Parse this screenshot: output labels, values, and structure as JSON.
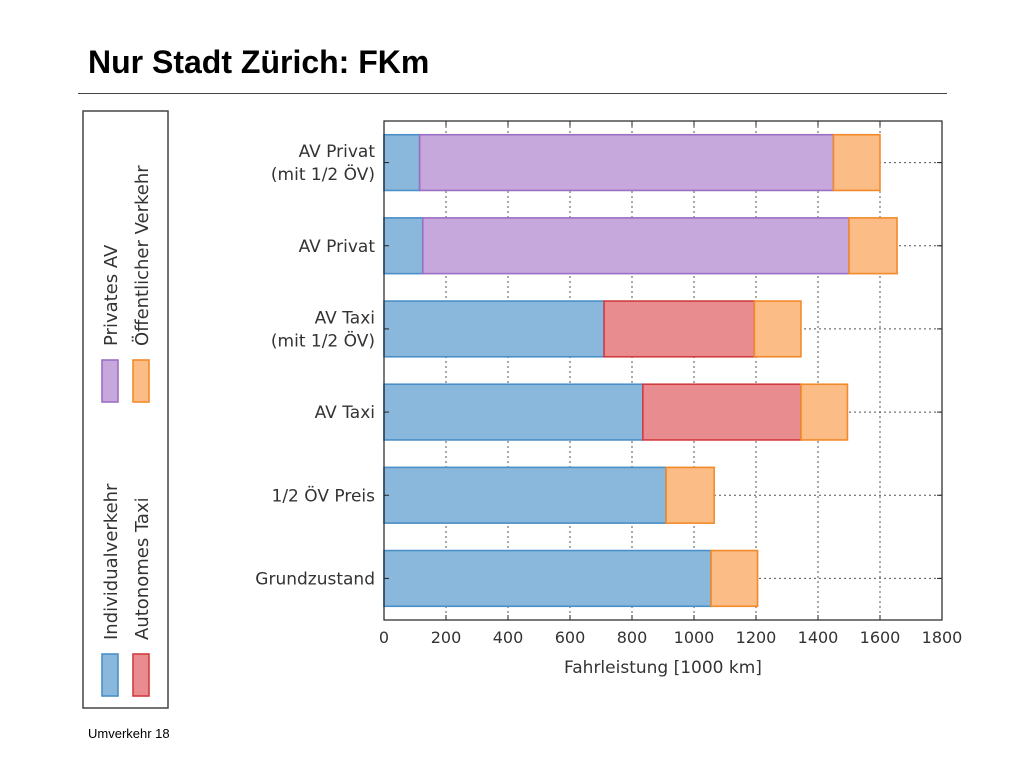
{
  "slide": {
    "title": "Nur Stadt Zürich: FKm",
    "footer": "Umverkehr 18"
  },
  "colors": {
    "individualverkehr": "#8ab8dc",
    "individualverkehr_edge": "#4a8fc7",
    "autonomes_taxi": "#e88c8f",
    "autonomes_taxi_edge": "#d23c40",
    "privates_av": "#c6a8dc",
    "privates_av_edge": "#9b6fc4",
    "oeffentlicher_verkehr": "#fcbc85",
    "oeffentlicher_verkehr_edge": "#f28a2a"
  },
  "chart_data": {
    "type": "bar",
    "orientation": "horizontal",
    "stacked": true,
    "title": "",
    "xlabel": "Fahrleistung [1000 km]",
    "ylabel": "",
    "xlim": [
      0,
      1800
    ],
    "xticks": [
      0,
      200,
      400,
      600,
      800,
      1000,
      1200,
      1400,
      1600,
      1800
    ],
    "grid": true,
    "legend_position": "left",
    "categories": [
      [
        "AV Privat",
        "(mit 1/2 ÖV)"
      ],
      [
        "AV Privat"
      ],
      [
        "AV Taxi",
        "(mit 1/2 ÖV)"
      ],
      [
        "AV Taxi"
      ],
      [
        "1/2 ÖV Preis"
      ],
      [
        "Grundzustand"
      ]
    ],
    "series": [
      {
        "name": "Individualverkehr",
        "color_key": "individualverkehr",
        "values": [
          115,
          125,
          710,
          835,
          910,
          1055
        ]
      },
      {
        "name": "Autonomes Taxi",
        "color_key": "autonomes_taxi",
        "values": [
          0,
          0,
          485,
          510,
          0,
          0
        ]
      },
      {
        "name": "Privates AV",
        "color_key": "privates_av",
        "values": [
          1335,
          1375,
          0,
          0,
          0,
          0
        ]
      },
      {
        "name": "Öffentlicher Verkehr",
        "color_key": "oeffentlicher_verkehr",
        "values": [
          150,
          155,
          150,
          150,
          155,
          150
        ]
      }
    ],
    "legend_order": [
      "Individualverkehr",
      "Autonomes Taxi",
      "Privates AV",
      "Öffentlicher Verkehr"
    ]
  }
}
